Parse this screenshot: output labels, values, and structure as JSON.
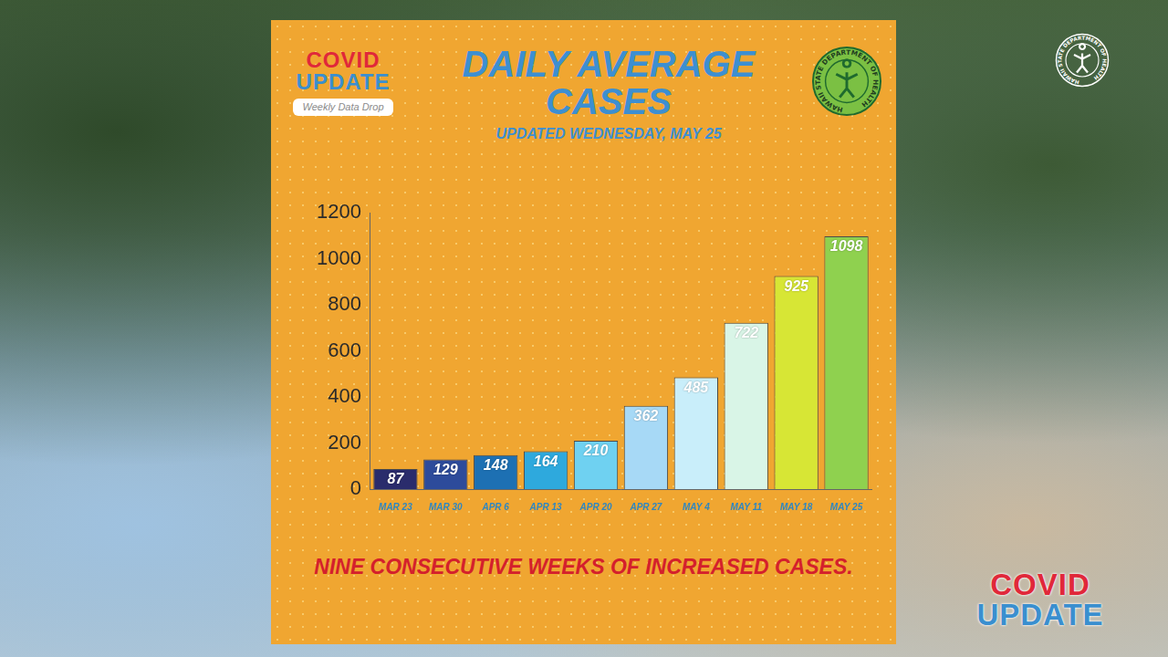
{
  "logo": {
    "text": [
      "COVID",
      "UPDATE"
    ],
    "badge": "Weekly Data Drop"
  },
  "seal": "HAWAII STATE DEPARTMENT OF HEALTH",
  "chart_data": {
    "type": "bar",
    "title": "DAILY AVERAGE CASES",
    "subtitle": "UPDATED WEDNESDAY, MAY 25",
    "categories": [
      "MAR 23",
      "MAR 30",
      "APR 6",
      "APR 13",
      "APR 20",
      "APR 27",
      "MAY 4",
      "MAY 11",
      "MAY 18",
      "MAY 25"
    ],
    "values": [
      87,
      129,
      148,
      164,
      210,
      362,
      485,
      722,
      925,
      1098
    ],
    "colors": [
      "#2a2c6c",
      "#2d4b9b",
      "#1d70b3",
      "#2ea9dd",
      "#6fd1f1",
      "#a7d9f6",
      "#c9eefa",
      "#d9f5e7",
      "#d7e635",
      "#8fd14f"
    ],
    "ylim": [
      0,
      1200
    ],
    "yticks": [
      0,
      200,
      400,
      600,
      800,
      1000,
      1200
    ],
    "grid": false,
    "data_labels": true,
    "annotations": [
      "NINE CONSECUTIVE WEEKS OF INCREASED CASES."
    ]
  }
}
